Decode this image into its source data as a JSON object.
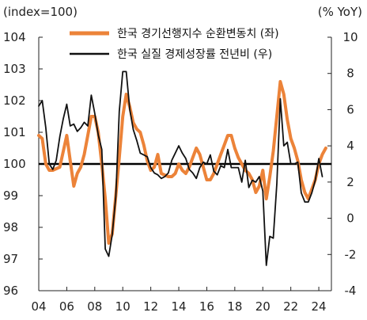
{
  "chart_data": {
    "type": "line",
    "left_unit": "(index=100)",
    "right_unit": "(% YoY)",
    "x_ticks": [
      "04",
      "06",
      "08",
      "10",
      "12",
      "14",
      "16",
      "18",
      "20",
      "22",
      "24"
    ],
    "x_range": [
      2004,
      2024.9
    ],
    "y_left": {
      "range": [
        96,
        104
      ],
      "ticks": [
        96,
        97,
        98,
        99,
        100,
        101,
        102,
        103,
        104
      ]
    },
    "y_right": {
      "range": [
        -4,
        10
      ],
      "ticks": [
        -4,
        -2,
        0,
        2,
        4,
        6,
        8,
        10
      ]
    },
    "reference_line_left": 100,
    "legend_position": "top-center",
    "series": [
      {
        "name": "한국 경기선행지수 순환변동치 (좌)",
        "axis": "left",
        "color": "#EC8339",
        "points": [
          [
            2004.0,
            100.9
          ],
          [
            2004.25,
            100.8
          ],
          [
            2004.5,
            100.0
          ],
          [
            2004.75,
            99.8
          ],
          [
            2005.0,
            99.8
          ],
          [
            2005.25,
            99.85
          ],
          [
            2005.5,
            99.9
          ],
          [
            2005.75,
            100.4
          ],
          [
            2006.0,
            100.9
          ],
          [
            2006.25,
            100.1
          ],
          [
            2006.5,
            99.3
          ],
          [
            2006.75,
            99.7
          ],
          [
            2007.0,
            99.9
          ],
          [
            2007.25,
            100.3
          ],
          [
            2007.5,
            100.9
          ],
          [
            2007.75,
            101.5
          ],
          [
            2008.0,
            101.5
          ],
          [
            2008.25,
            101.0
          ],
          [
            2008.5,
            100.0
          ],
          [
            2008.75,
            98.9
          ],
          [
            2009.0,
            97.5
          ],
          [
            2009.25,
            97.8
          ],
          [
            2009.5,
            99.0
          ],
          [
            2009.75,
            100.2
          ],
          [
            2010.0,
            101.5
          ],
          [
            2010.25,
            102.2
          ],
          [
            2010.5,
            101.8
          ],
          [
            2010.75,
            101.3
          ],
          [
            2011.0,
            101.1
          ],
          [
            2011.25,
            101.0
          ],
          [
            2011.5,
            100.6
          ],
          [
            2011.75,
            100.1
          ],
          [
            2012.0,
            99.8
          ],
          [
            2012.25,
            99.9
          ],
          [
            2012.5,
            100.3
          ],
          [
            2012.75,
            99.7
          ],
          [
            2013.0,
            99.65
          ],
          [
            2013.25,
            99.6
          ],
          [
            2013.5,
            99.6
          ],
          [
            2013.75,
            99.7
          ],
          [
            2014.0,
            100.0
          ],
          [
            2014.25,
            99.8
          ],
          [
            2014.5,
            99.7
          ],
          [
            2014.75,
            99.9
          ],
          [
            2015.0,
            100.2
          ],
          [
            2015.25,
            100.5
          ],
          [
            2015.5,
            100.3
          ],
          [
            2015.75,
            99.9
          ],
          [
            2016.0,
            99.5
          ],
          [
            2016.25,
            99.5
          ],
          [
            2016.5,
            99.7
          ],
          [
            2016.75,
            100.0
          ],
          [
            2017.0,
            100.3
          ],
          [
            2017.25,
            100.6
          ],
          [
            2017.5,
            100.9
          ],
          [
            2017.75,
            100.9
          ],
          [
            2018.0,
            100.5
          ],
          [
            2018.25,
            100.2
          ],
          [
            2018.5,
            100.0
          ],
          [
            2018.75,
            99.8
          ],
          [
            2019.0,
            99.7
          ],
          [
            2019.25,
            99.5
          ],
          [
            2019.5,
            99.1
          ],
          [
            2019.75,
            99.3
          ],
          [
            2020.0,
            99.8
          ],
          [
            2020.25,
            98.9
          ],
          [
            2020.5,
            99.6
          ],
          [
            2020.75,
            100.4
          ],
          [
            2021.0,
            101.5
          ],
          [
            2021.25,
            102.6
          ],
          [
            2021.5,
            102.2
          ],
          [
            2021.75,
            101.4
          ],
          [
            2022.0,
            100.8
          ],
          [
            2022.25,
            100.5
          ],
          [
            2022.5,
            100.1
          ],
          [
            2022.75,
            99.5
          ],
          [
            2023.0,
            99.1
          ],
          [
            2023.25,
            98.9
          ],
          [
            2023.5,
            99.2
          ],
          [
            2023.75,
            99.5
          ],
          [
            2024.0,
            100.0
          ],
          [
            2024.25,
            100.3
          ],
          [
            2024.5,
            100.5
          ]
        ]
      },
      {
        "name": "한국 실질 경제성장률 전년비 (우)",
        "axis": "right",
        "color": "#111111",
        "points": [
          [
            2004.0,
            6.2
          ],
          [
            2004.25,
            6.5
          ],
          [
            2004.5,
            5.0
          ],
          [
            2004.75,
            3.0
          ],
          [
            2005.0,
            2.7
          ],
          [
            2005.25,
            3.2
          ],
          [
            2005.5,
            4.5
          ],
          [
            2005.75,
            5.5
          ],
          [
            2006.0,
            6.3
          ],
          [
            2006.25,
            5.1
          ],
          [
            2006.5,
            5.2
          ],
          [
            2006.75,
            4.8
          ],
          [
            2007.0,
            5.0
          ],
          [
            2007.25,
            5.3
          ],
          [
            2007.5,
            5.1
          ],
          [
            2007.75,
            6.8
          ],
          [
            2008.0,
            5.8
          ],
          [
            2008.25,
            4.6
          ],
          [
            2008.5,
            3.8
          ],
          [
            2008.75,
            -1.7
          ],
          [
            2009.0,
            -2.1
          ],
          [
            2009.25,
            -0.9
          ],
          [
            2009.5,
            1.2
          ],
          [
            2009.75,
            5.9
          ],
          [
            2010.0,
            8.1
          ],
          [
            2010.25,
            8.1
          ],
          [
            2010.5,
            6.0
          ],
          [
            2010.75,
            4.9
          ],
          [
            2011.0,
            4.3
          ],
          [
            2011.25,
            3.6
          ],
          [
            2011.5,
            3.5
          ],
          [
            2011.75,
            3.4
          ],
          [
            2012.0,
            2.8
          ],
          [
            2012.25,
            2.5
          ],
          [
            2012.5,
            2.4
          ],
          [
            2012.75,
            2.2
          ],
          [
            2013.0,
            2.3
          ],
          [
            2013.25,
            2.5
          ],
          [
            2013.5,
            3.2
          ],
          [
            2013.75,
            3.6
          ],
          [
            2014.0,
            4.0
          ],
          [
            2014.25,
            3.6
          ],
          [
            2014.5,
            3.3
          ],
          [
            2014.75,
            2.7
          ],
          [
            2015.0,
            2.5
          ],
          [
            2015.25,
            2.2
          ],
          [
            2015.5,
            2.8
          ],
          [
            2015.75,
            3.1
          ],
          [
            2016.0,
            3.0
          ],
          [
            2016.25,
            3.5
          ],
          [
            2016.5,
            2.6
          ],
          [
            2016.75,
            2.4
          ],
          [
            2017.0,
            2.9
          ],
          [
            2017.25,
            2.8
          ],
          [
            2017.5,
            3.8
          ],
          [
            2017.75,
            2.8
          ],
          [
            2018.0,
            2.8
          ],
          [
            2018.25,
            2.8
          ],
          [
            2018.5,
            2.0
          ],
          [
            2018.75,
            3.2
          ],
          [
            2019.0,
            1.7
          ],
          [
            2019.25,
            2.1
          ],
          [
            2019.5,
            2.0
          ],
          [
            2019.75,
            2.3
          ],
          [
            2020.0,
            1.5
          ],
          [
            2020.25,
            -2.6
          ],
          [
            2020.5,
            -1.0
          ],
          [
            2020.75,
            -1.1
          ],
          [
            2021.0,
            1.9
          ],
          [
            2021.25,
            6.6
          ],
          [
            2021.5,
            4.0
          ],
          [
            2021.75,
            4.2
          ],
          [
            2022.0,
            3.0
          ],
          [
            2022.25,
            3.0
          ],
          [
            2022.5,
            3.1
          ],
          [
            2022.75,
            1.4
          ],
          [
            2023.0,
            0.9
          ],
          [
            2023.25,
            0.9
          ],
          [
            2023.5,
            1.4
          ],
          [
            2023.75,
            2.1
          ],
          [
            2024.0,
            3.3
          ],
          [
            2024.25,
            2.3
          ]
        ]
      }
    ]
  }
}
